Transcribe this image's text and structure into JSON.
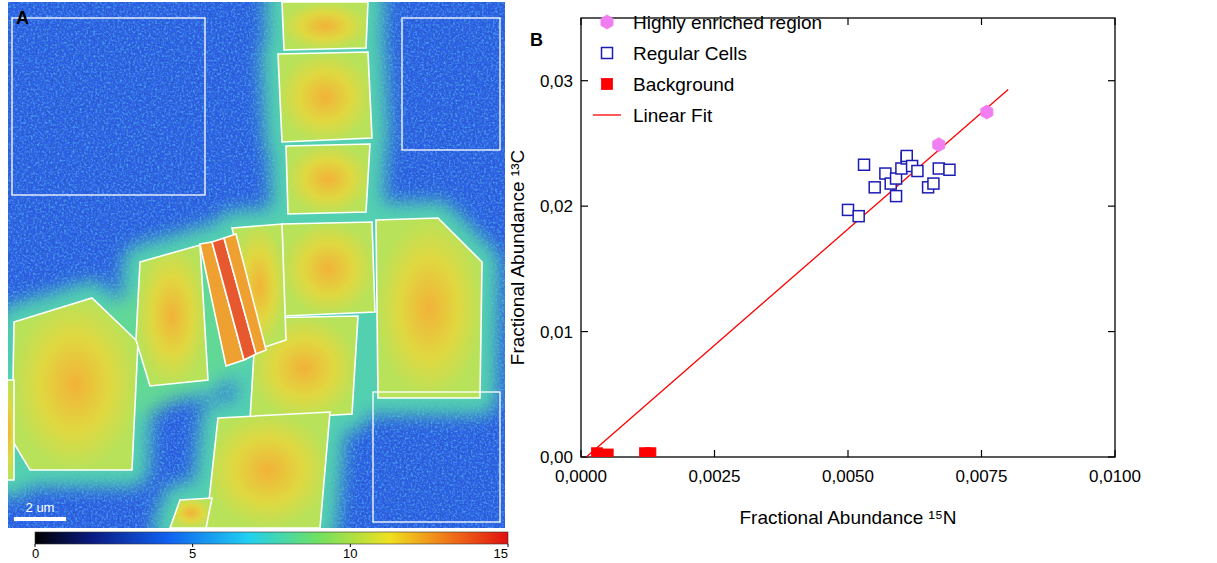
{
  "chart_data": [
    {
      "type": "image",
      "panel": "A",
      "scale_bar": "2 um",
      "colorbar_range": [
        0,
        15
      ],
      "colorbar_ticks": [
        0,
        5,
        10,
        15
      ]
    },
    {
      "type": "scatter",
      "panel": "B",
      "xlabel": "Fractional Abundance ¹⁵N",
      "ylabel": "Fractional Abundance ¹³C",
      "xlim": [
        0,
        0.01
      ],
      "ylim": [
        0,
        0.035
      ],
      "xticks": [
        {
          "value": 0,
          "label": "0,0000"
        },
        {
          "value": 0.0025,
          "label": "0,0025"
        },
        {
          "value": 0.005,
          "label": "0,0050"
        },
        {
          "value": 0.0075,
          "label": "0,0075"
        },
        {
          "value": 0.01,
          "label": "0,0100"
        }
      ],
      "yticks": [
        {
          "value": 0,
          "label": "0,00"
        },
        {
          "value": 0.01,
          "label": "0,01"
        },
        {
          "value": 0.02,
          "label": "0,02"
        },
        {
          "value": 0.03,
          "label": "0,03"
        }
      ],
      "legend": "upper left",
      "series": [
        {
          "name": "Highly enriched region",
          "color": "#f07ef0",
          "marker": "hexagon",
          "x": [
            0.0067,
            0.0076
          ],
          "values": [
            0.0249,
            0.0275
          ]
        },
        {
          "name": "Regular Cells",
          "color": "#1c1cb4",
          "marker": "open-square",
          "x": [
            0.005,
            0.0052,
            0.0053,
            0.0055,
            0.0057,
            0.0058,
            0.0059,
            0.0059,
            0.006,
            0.0061,
            0.0061,
            0.0062,
            0.0063,
            0.0065,
            0.0066,
            0.0067,
            0.0069
          ],
          "values": [
            0.0197,
            0.0192,
            0.0233,
            0.0215,
            0.0226,
            0.0218,
            0.0208,
            0.0222,
            0.023,
            0.0238,
            0.024,
            0.0232,
            0.0228,
            0.0215,
            0.0218,
            0.023,
            0.0229
          ]
        },
        {
          "name": "Background",
          "color": "#ff0000",
          "marker": "square",
          "x": [
            0.0003,
            0.0005,
            0.0012,
            0.0013
          ],
          "values": [
            0.0003,
            0.0002,
            0.0003,
            0.0003
          ]
        },
        {
          "name": "Linear Fit",
          "type": "line",
          "color": "#ff0000",
          "line_style": "solid",
          "x": [
            0.0001,
            0.008
          ],
          "values": [
            0.0,
            0.0293
          ]
        }
      ]
    }
  ]
}
